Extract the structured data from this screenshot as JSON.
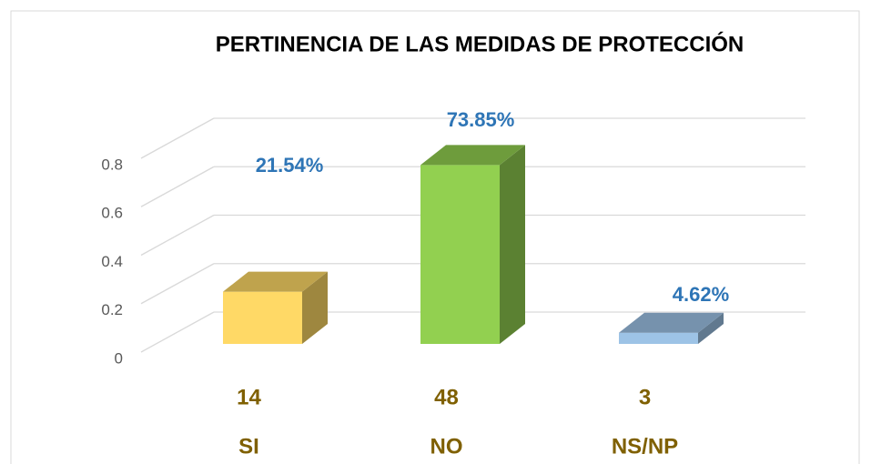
{
  "chart_data": {
    "type": "bar3d",
    "title": "PERTINENCIA DE LAS MEDIDAS DE PROTECCIÓN",
    "categories": [
      "SI",
      "NO",
      "NS/NP"
    ],
    "counts": [
      14,
      48,
      3
    ],
    "values": [
      0.2154,
      0.7385,
      0.0462
    ],
    "value_labels": [
      "21.54%",
      "73.85%",
      "4.62%"
    ],
    "colors": [
      "#ffd966",
      "#92d050",
      "#9dc3e6"
    ],
    "ylim": [
      0,
      0.8
    ],
    "yticks": [
      0,
      0.2,
      0.4,
      0.6,
      0.8
    ],
    "grid": true
  }
}
